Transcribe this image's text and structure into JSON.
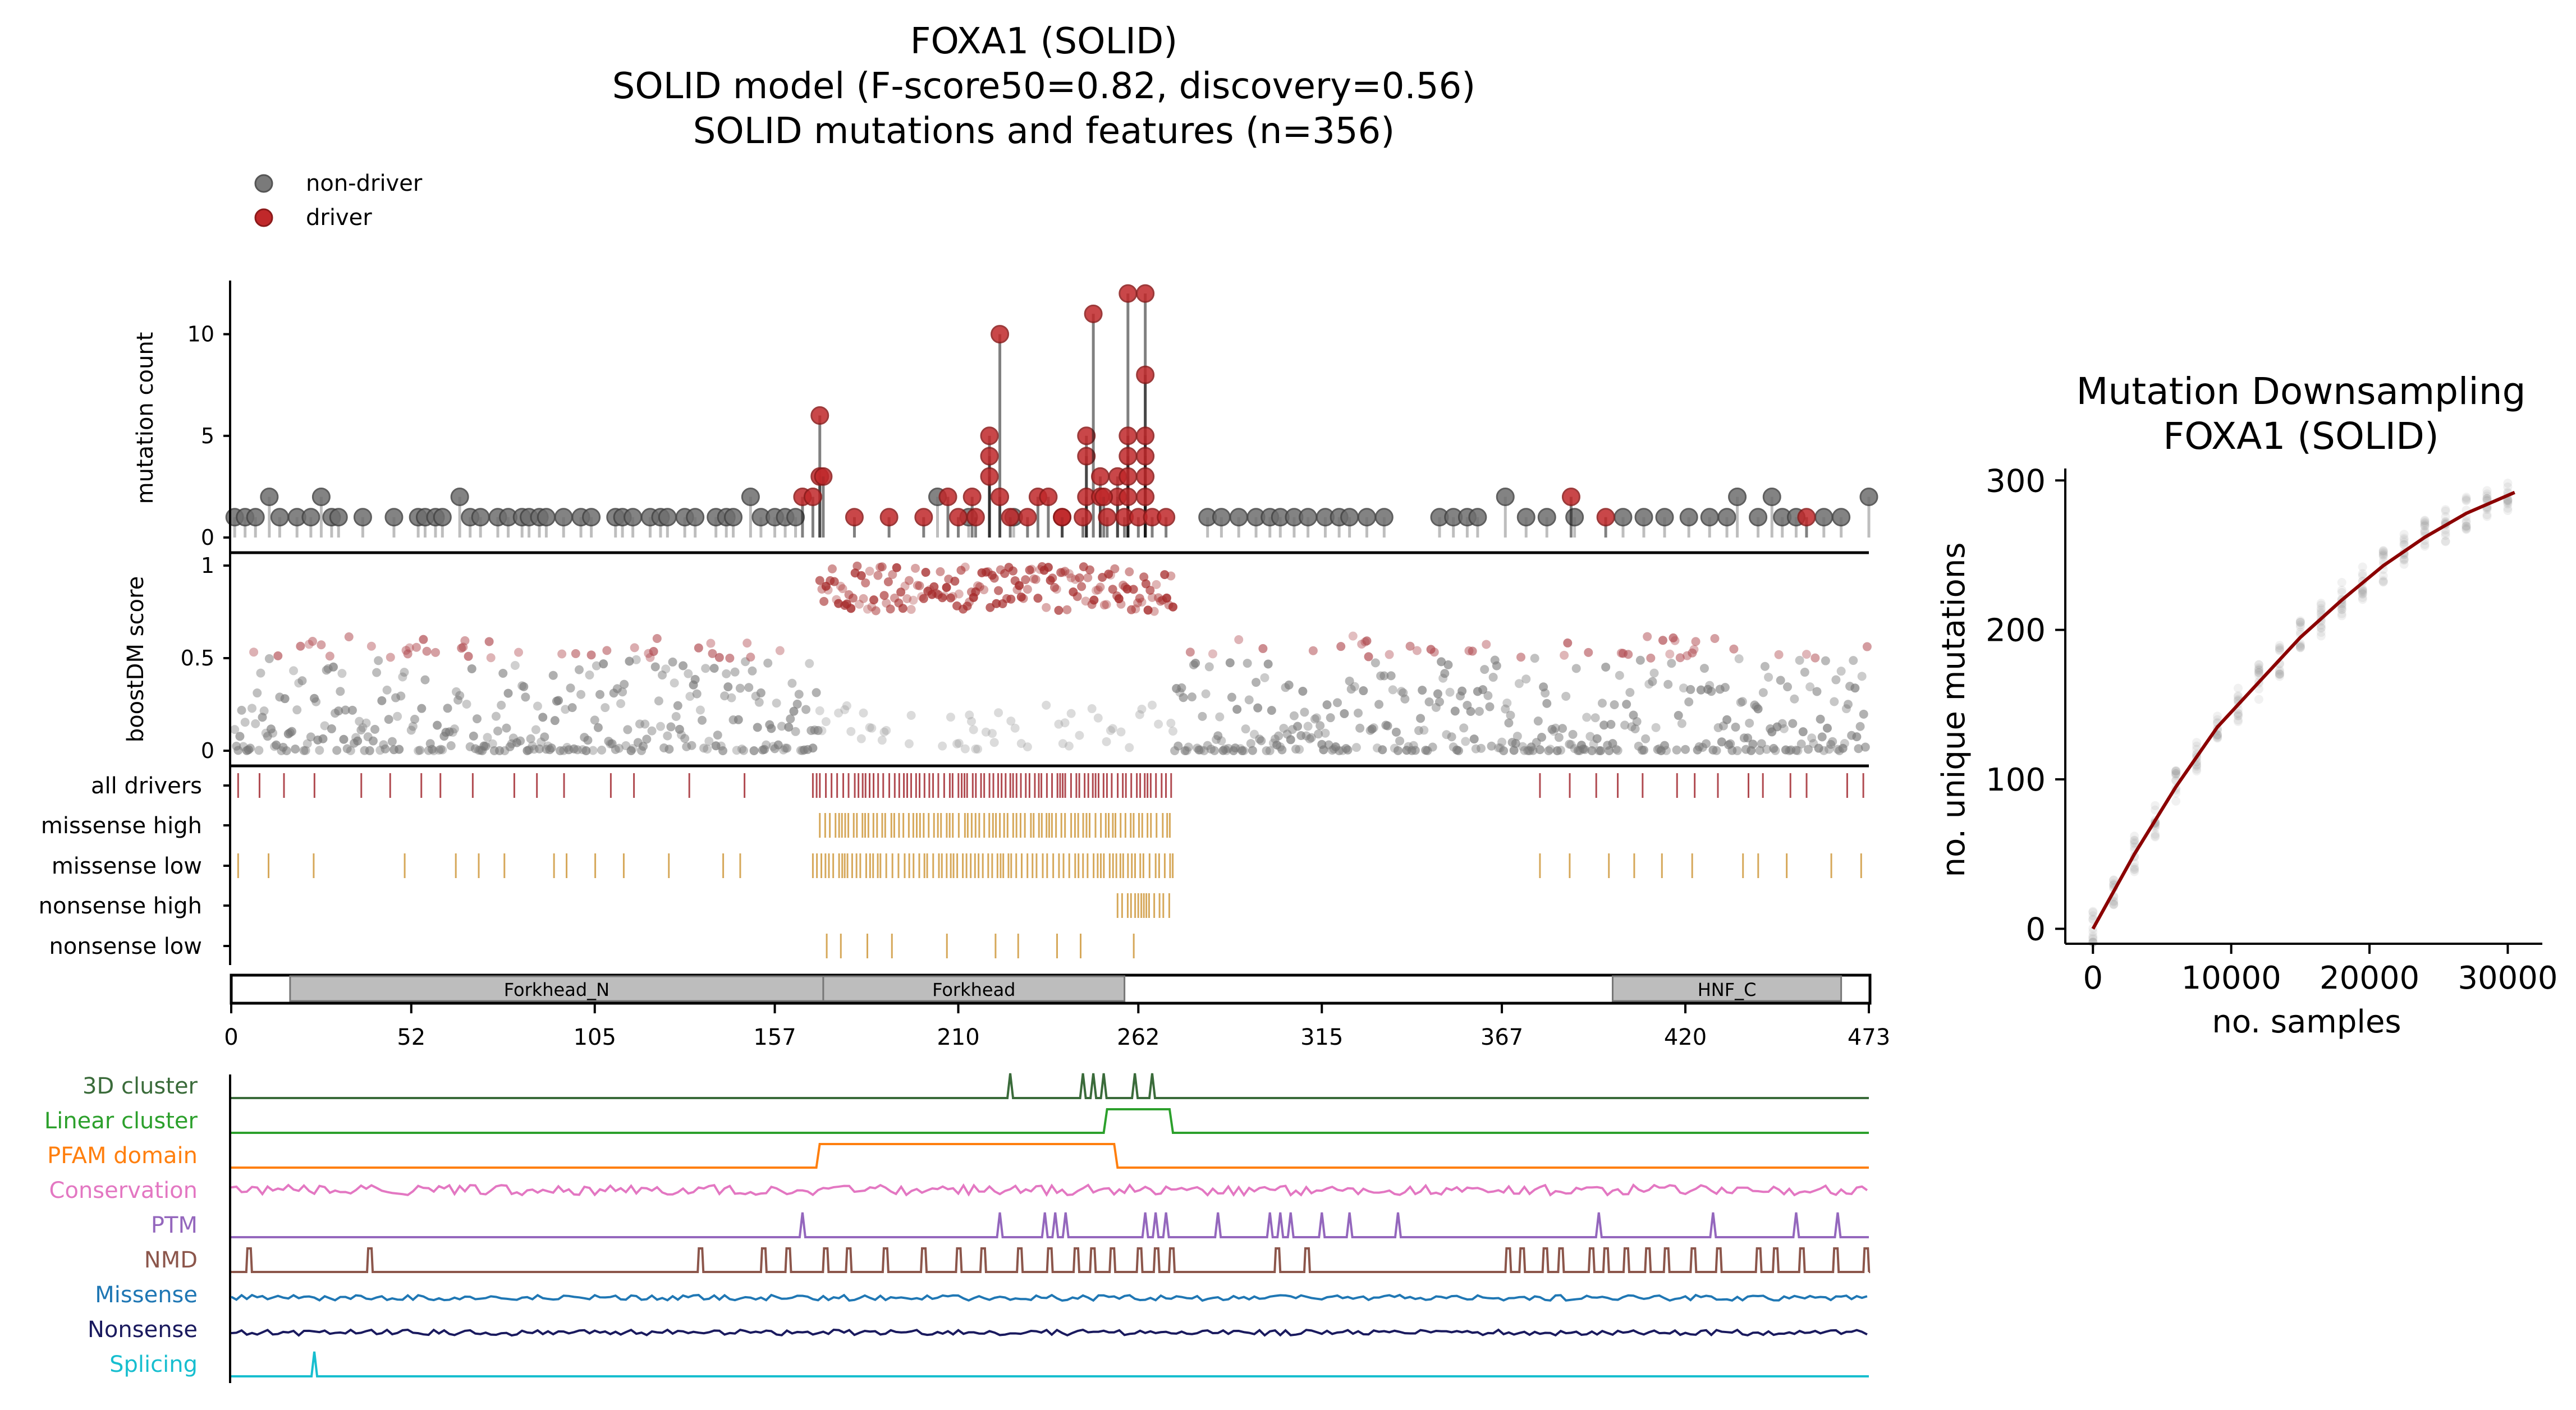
{
  "titles": {
    "line1": "FOXA1 (SOLID)",
    "line2": "SOLID model (F-score50=0.82, discovery=0.56)",
    "line3": "SOLID mutations and features (n=356)"
  },
  "legend": [
    {
      "label": "non-driver",
      "color": "#7a7a7a"
    },
    {
      "label": "driver",
      "color": "#c0282a"
    }
  ],
  "colors": {
    "driver": "#c0282a",
    "nondriver": "#6e6e6e",
    "driver_track": "#b04a50",
    "missense_track": "#d6a85a",
    "domain_fill": "#bdbdbd",
    "downsampling_line": "#8b0000"
  },
  "protein_length": 473,
  "xticks": [
    0,
    52,
    105,
    157,
    210,
    262,
    315,
    367,
    420,
    473
  ],
  "chart_data": [
    {
      "type": "scatter",
      "name": "lollipop",
      "ylabel": "mutation count",
      "ylim": [
        0,
        12.5
      ],
      "yticks": [
        0,
        5,
        10
      ],
      "xlim": [
        0,
        473
      ],
      "driver_positions": [
        [
          170,
          6
        ],
        [
          170,
          3
        ],
        [
          171,
          3
        ],
        [
          222,
          10
        ],
        [
          219,
          5
        ],
        [
          219,
          4
        ],
        [
          219,
          3
        ],
        [
          222,
          2
        ],
        [
          240,
          1
        ],
        [
          247,
          5
        ],
        [
          247,
          4
        ],
        [
          249,
          11
        ],
        [
          251,
          3
        ],
        [
          247,
          2
        ],
        [
          251,
          2
        ],
        [
          256,
          3
        ],
        [
          256,
          2
        ],
        [
          259,
          12
        ],
        [
          259,
          5
        ],
        [
          259,
          4
        ],
        [
          259,
          3
        ],
        [
          259,
          2
        ],
        [
          264,
          12
        ],
        [
          264,
          8
        ],
        [
          264,
          5
        ],
        [
          264,
          4
        ],
        [
          264,
          3
        ],
        [
          264,
          2
        ],
        [
          207,
          2
        ],
        [
          214,
          2
        ],
        [
          233,
          2
        ],
        [
          236,
          2
        ],
        [
          252,
          2
        ],
        [
          387,
          2
        ],
        [
          165,
          2
        ],
        [
          168,
          2
        ],
        [
          180,
          1
        ],
        [
          190,
          1
        ],
        [
          200,
          1
        ],
        [
          210,
          1
        ],
        [
          215,
          1
        ],
        [
          225,
          1
        ],
        [
          230,
          1
        ],
        [
          240,
          1
        ],
        [
          246,
          1
        ],
        [
          253,
          1
        ],
        [
          258,
          1
        ],
        [
          262,
          1
        ],
        [
          266,
          1
        ],
        [
          270,
          1
        ],
        [
          397,
          1
        ],
        [
          455,
          1
        ]
      ],
      "nondriver_positions": [
        [
          1,
          1
        ],
        [
          4,
          1
        ],
        [
          7,
          1
        ],
        [
          11,
          2
        ],
        [
          14,
          1
        ],
        [
          19,
          1
        ],
        [
          23,
          1
        ],
        [
          26,
          2
        ],
        [
          29,
          1
        ],
        [
          31,
          1
        ],
        [
          38,
          1
        ],
        [
          47,
          1
        ],
        [
          54,
          1
        ],
        [
          56,
          1
        ],
        [
          59,
          1
        ],
        [
          61,
          1
        ],
        [
          66,
          2
        ],
        [
          69,
          1
        ],
        [
          72,
          1
        ],
        [
          77,
          1
        ],
        [
          80,
          1
        ],
        [
          84,
          1
        ],
        [
          86,
          1
        ],
        [
          89,
          1
        ],
        [
          91,
          1
        ],
        [
          96,
          1
        ],
        [
          101,
          1
        ],
        [
          104,
          1
        ],
        [
          111,
          1
        ],
        [
          113,
          1
        ],
        [
          116,
          1
        ],
        [
          121,
          1
        ],
        [
          124,
          1
        ],
        [
          126,
          1
        ],
        [
          131,
          1
        ],
        [
          134,
          1
        ],
        [
          140,
          1
        ],
        [
          143,
          1
        ],
        [
          145,
          1
        ],
        [
          150,
          2
        ],
        [
          153,
          1
        ],
        [
          157,
          1
        ],
        [
          160,
          1
        ],
        [
          163,
          1
        ],
        [
          204,
          2
        ],
        [
          213,
          1
        ],
        [
          226,
          1
        ],
        [
          282,
          1
        ],
        [
          286,
          1
        ],
        [
          291,
          1
        ],
        [
          296,
          1
        ],
        [
          300,
          1
        ],
        [
          303,
          1
        ],
        [
          307,
          1
        ],
        [
          311,
          1
        ],
        [
          316,
          1
        ],
        [
          320,
          1
        ],
        [
          323,
          1
        ],
        [
          328,
          1
        ],
        [
          333,
          1
        ],
        [
          349,
          1
        ],
        [
          353,
          1
        ],
        [
          357,
          1
        ],
        [
          360,
          1
        ],
        [
          368,
          2
        ],
        [
          374,
          1
        ],
        [
          380,
          1
        ],
        [
          388,
          1
        ],
        [
          402,
          1
        ],
        [
          408,
          1
        ],
        [
          414,
          1
        ],
        [
          421,
          1
        ],
        [
          427,
          1
        ],
        [
          432,
          1
        ],
        [
          435,
          2
        ],
        [
          441,
          1
        ],
        [
          445,
          2
        ],
        [
          448,
          1
        ],
        [
          452,
          1
        ],
        [
          460,
          1
        ],
        [
          465,
          1
        ],
        [
          473,
          2
        ]
      ]
    },
    {
      "type": "scatter",
      "name": "boostDM",
      "ylabel": "boostDM score",
      "ylim": [
        0,
        1
      ],
      "yticks": [
        0,
        0.5,
        1
      ],
      "yticklabels": [
        "0",
        "0.5",
        "1"
      ],
      "xlim": [
        0,
        473
      ],
      "high_region": [
        170,
        272
      ],
      "high_score_range": [
        0.75,
        1.0
      ]
    },
    {
      "type": "table",
      "name": "tracks",
      "rows": [
        {
          "label": "all drivers",
          "color": "#b04a50",
          "regions": [
            [
              2,
              150
            ],
            [
              168,
              272
            ],
            [
              378,
              472
            ]
          ],
          "dense": [
            168,
            272
          ]
        },
        {
          "label": "missense high",
          "color": "#d6a85a",
          "regions": [
            [
              170,
              272
            ]
          ],
          "dense": [
            170,
            272
          ]
        },
        {
          "label": "missense low",
          "color": "#d6a85a",
          "regions": [
            [
              2,
              150
            ],
            [
              168,
              272
            ],
            [
              378,
              472
            ]
          ],
          "dense": [
            168,
            272
          ]
        },
        {
          "label": "nonsense high",
          "color": "#d6a85a",
          "regions": [
            [
              256,
              272
            ]
          ],
          "dense": [
            256,
            272
          ]
        },
        {
          "label": "nonsense low",
          "color": "#d6a85a",
          "regions": [
            [
              172,
              262
            ]
          ],
          "dense": []
        }
      ]
    },
    {
      "type": "bar",
      "name": "domains",
      "domains": [
        {
          "name": "Forkhead_N",
          "start": 17,
          "end": 171
        },
        {
          "name": "Forkhead",
          "start": 171,
          "end": 258
        },
        {
          "name": "HNF_C",
          "start": 399,
          "end": 465
        }
      ]
    },
    {
      "type": "line",
      "name": "features",
      "series": [
        {
          "name": "3D cluster",
          "color": "#3a6b3a",
          "kind": "spikes",
          "at": [
            225,
            246,
            249,
            252,
            261,
            266
          ]
        },
        {
          "name": "Linear cluster",
          "color": "#2ca02c",
          "kind": "block",
          "at": [
            [
              252,
              272
            ]
          ]
        },
        {
          "name": "PFAM domain",
          "color": "#ff7f0e",
          "kind": "block",
          "at": [
            [
              169,
              256
            ]
          ]
        },
        {
          "name": "Conservation",
          "color": "#e377c2",
          "kind": "noise"
        },
        {
          "name": "PTM",
          "color": "#9467bd",
          "kind": "spikes",
          "at": [
            165,
            222,
            235,
            238,
            241,
            264,
            267,
            270,
            285,
            300,
            303,
            306,
            315,
            323,
            337,
            395,
            428,
            452,
            464
          ]
        },
        {
          "name": "NMD",
          "color": "#8c564b",
          "kind": "dense_spikes"
        },
        {
          "name": "Missense",
          "color": "#1f77b4",
          "kind": "noise"
        },
        {
          "name": "Nonsense",
          "color": "#1a1a5e",
          "kind": "noise"
        },
        {
          "name": "Splicing",
          "color": "#17becf",
          "kind": "spikes",
          "at": [
            24
          ]
        }
      ]
    },
    {
      "type": "line",
      "name": "downsampling",
      "title": "Mutation Downsampling",
      "subtitle": "FOXA1 (SOLID)",
      "xlabel": "no. samples",
      "ylabel": "no. unique mutations",
      "xlim": [
        -2000,
        32500
      ],
      "ylim": [
        -10,
        308
      ],
      "xticks": [
        0,
        10000,
        20000,
        30000
      ],
      "yticks": [
        0,
        100,
        200,
        300
      ],
      "x": [
        0,
        3000,
        6000,
        9000,
        12000,
        15000,
        18000,
        21000,
        24000,
        27000,
        30500
      ],
      "y": [
        0,
        50,
        95,
        135,
        165,
        195,
        220,
        243,
        262,
        278,
        292
      ]
    }
  ]
}
